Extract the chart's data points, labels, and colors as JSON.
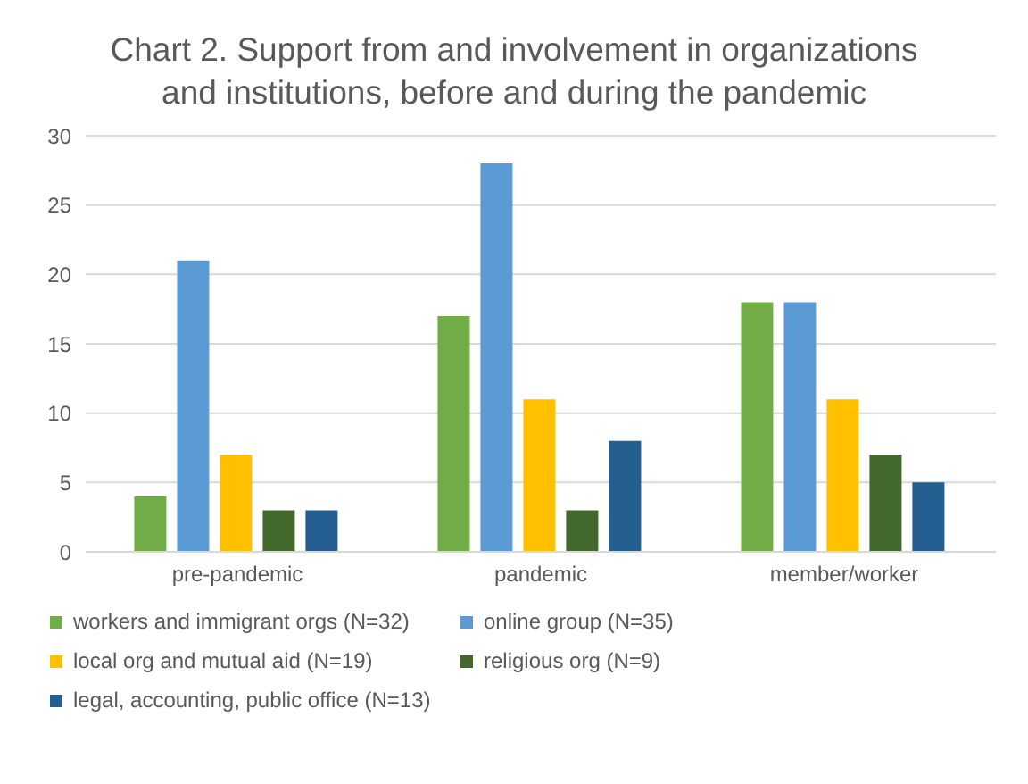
{
  "chart_data": {
    "type": "bar",
    "title": "Chart 2. Support from and involvement in organizations and institutions, before and during the pandemic",
    "categories": [
      "pre-pandemic",
      "pandemic",
      "member/worker"
    ],
    "series": [
      {
        "name": "workers and immigrant orgs (N=32)",
        "color": "#70ad47",
        "values": [
          4,
          17,
          18
        ]
      },
      {
        "name": "online group (N=35)",
        "color": "#5b9bd5",
        "values": [
          21,
          28,
          18
        ]
      },
      {
        "name": "local org and mutual aid (N=19)",
        "color": "#ffc000",
        "values": [
          7,
          11,
          11
        ]
      },
      {
        "name": "religious org (N=9)",
        "color": "#43682b",
        "values": [
          3,
          3,
          7
        ]
      },
      {
        "name": "legal, accounting, public office (N=13)",
        "color": "#255e91",
        "values": [
          3,
          8,
          5
        ]
      }
    ],
    "ylim": [
      0,
      30
    ],
    "yticks": [
      0,
      5,
      10,
      15,
      20,
      25,
      30
    ],
    "grid": "y",
    "legend": "bottom"
  }
}
